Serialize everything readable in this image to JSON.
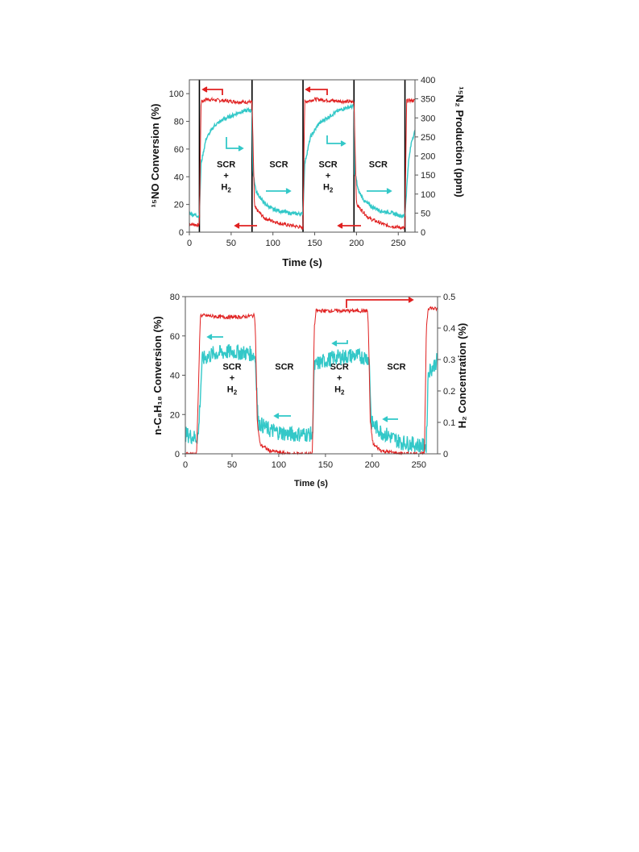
{
  "chart_data": [
    {
      "type": "line",
      "xlabel": "Time (s)",
      "ylabel_left": "¹⁵NO Conversion (%)",
      "ylabel_right": "¹⁵N₂ Production (ppm)",
      "xlim": [
        0,
        270
      ],
      "ylim_left": [
        0,
        110
      ],
      "ylim_right": [
        0,
        400
      ],
      "xticks": [
        "0",
        "50",
        "100",
        "150",
        "200",
        "250"
      ],
      "yticks_left": [
        "0",
        "20",
        "40",
        "60",
        "80",
        "100"
      ],
      "yticks_right": [
        "0",
        "50",
        "100",
        "150",
        "200",
        "250",
        "300",
        "350",
        "400"
      ],
      "grid": false,
      "colors": {
        "conversion": "#e02020",
        "production": "#33c8c8",
        "switch_line": "#000000"
      },
      "switch_times": [
        12,
        75,
        136,
        197,
        258
      ],
      "annotations": [
        {
          "lines": [
            "SCR",
            "+",
            "H2"
          ],
          "x": 44,
          "y": 40
        },
        {
          "lines": [
            "SCR"
          ],
          "x": 107,
          "y": 40
        },
        {
          "lines": [
            "SCR",
            "+",
            "H2"
          ],
          "x": 166,
          "y": 40
        },
        {
          "lines": [
            "SCR"
          ],
          "x": 226,
          "y": 40
        }
      ],
      "series": [
        {
          "axis": "left",
          "x": [
            0,
            11,
            12,
            14,
            20,
            40,
            60,
            74,
            75,
            78,
            90,
            110,
            130,
            135,
            136,
            138,
            150,
            170,
            195,
            197,
            200,
            215,
            235,
            256,
            258,
            260,
            270
          ],
          "y": [
            6,
            5,
            5,
            94,
            96,
            95,
            94,
            94,
            94,
            18,
            10,
            6,
            4,
            3,
            3,
            94,
            96,
            95,
            94,
            94,
            20,
            10,
            5,
            3,
            3,
            95,
            95
          ]
        },
        {
          "axis": "right",
          "x": [
            0,
            11,
            12,
            14,
            20,
            30,
            40,
            50,
            60,
            70,
            75,
            76,
            80,
            90,
            100,
            110,
            120,
            130,
            135,
            136,
            138,
            145,
            155,
            165,
            175,
            185,
            195,
            197,
            198,
            202,
            210,
            220,
            230,
            240,
            250,
            256,
            258,
            262,
            266,
            270
          ],
          "y": [
            50,
            42,
            45,
            180,
            245,
            280,
            295,
            305,
            315,
            320,
            320,
            160,
            105,
            75,
            60,
            55,
            50,
            48,
            48,
            50,
            180,
            250,
            285,
            300,
            315,
            325,
            330,
            330,
            160,
            110,
            80,
            65,
            55,
            52,
            45,
            42,
            45,
            180,
            240,
            265
          ]
        }
      ]
    },
    {
      "type": "line",
      "xlabel": "Time (s)",
      "ylabel_left": "n-C₈H₁₈ Conversion (%)",
      "ylabel_right": "H₂ Concentration (%)",
      "xlim": [
        0,
        270
      ],
      "ylim_left": [
        0,
        80
      ],
      "ylim_right": [
        0,
        0.5
      ],
      "xticks": [
        "0",
        "50",
        "100",
        "150",
        "200",
        "250"
      ],
      "yticks_left": [
        "0",
        "20",
        "40",
        "60",
        "80"
      ],
      "yticks_right": [
        "0",
        "0.1",
        "0.2",
        "0.3",
        "0.4",
        "0.5"
      ],
      "grid": false,
      "colors": {
        "conversion": "#33c8c8",
        "h2": "#e02020"
      },
      "annotations": [
        {
          "lines": [
            "SCR",
            "+",
            "H2"
          ],
          "x": 50,
          "y": 38
        },
        {
          "lines": [
            "SCR"
          ],
          "x": 106,
          "y": 38
        },
        {
          "lines": [
            "SCR",
            "+",
            "H2"
          ],
          "x": 165,
          "y": 38
        },
        {
          "lines": [
            "SCR"
          ],
          "x": 226,
          "y": 38
        }
      ],
      "series": [
        {
          "axis": "left",
          "x": [
            0,
            12,
            14,
            18,
            30,
            50,
            70,
            74,
            75,
            78,
            90,
            110,
            134,
            136,
            138,
            142,
            160,
            180,
            195,
            197,
            199,
            210,
            230,
            255,
            258,
            260,
            265,
            270
          ],
          "y": [
            10,
            8,
            10,
            48,
            51,
            52,
            51,
            50,
            48,
            16,
            12,
            10,
            10,
            8,
            44,
            46,
            49,
            50,
            49,
            47,
            16,
            11,
            6,
            4,
            4,
            42,
            44,
            48
          ],
          "noise": 4
        },
        {
          "axis": "right",
          "x": [
            0,
            12,
            14,
            16,
            20,
            40,
            60,
            74,
            75,
            77,
            80,
            90,
            110,
            134,
            136,
            138,
            140,
            150,
            170,
            195,
            196,
            198,
            201,
            210,
            230,
            256,
            258,
            260,
            270
          ],
          "y": [
            0,
            0,
            0.2,
            0.44,
            0.44,
            0.435,
            0.435,
            0.44,
            0.4,
            0.1,
            0.03,
            0.01,
            0,
            0,
            0,
            0.4,
            0.455,
            0.455,
            0.455,
            0.455,
            0.4,
            0.1,
            0.03,
            0.01,
            0,
            0,
            0.4,
            0.465,
            0.46
          ]
        }
      ]
    }
  ]
}
